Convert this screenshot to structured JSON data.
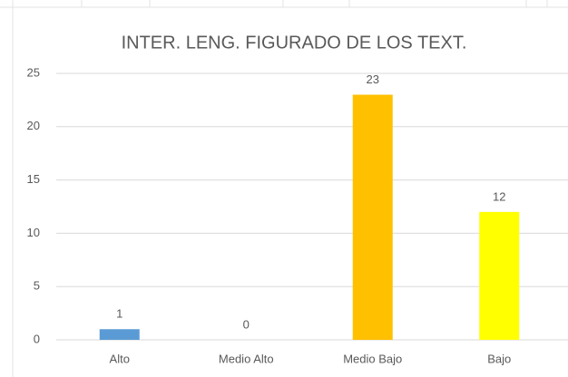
{
  "chart_data": {
    "type": "bar",
    "title": "INTER. LENG. FIGURADO DE LOS TEXT.",
    "categories": [
      "Alto",
      "Medio Alto",
      "Medio Bajo",
      "Bajo"
    ],
    "values": [
      1,
      0,
      23,
      12
    ],
    "colors": [
      "#5b9bd5",
      "#5b9bd5",
      "#ffc000",
      "#ffff00"
    ],
    "ylim": [
      0,
      25
    ],
    "yticks": [
      0,
      5,
      10,
      15,
      20,
      25
    ],
    "grid": true,
    "data_labels": true
  }
}
